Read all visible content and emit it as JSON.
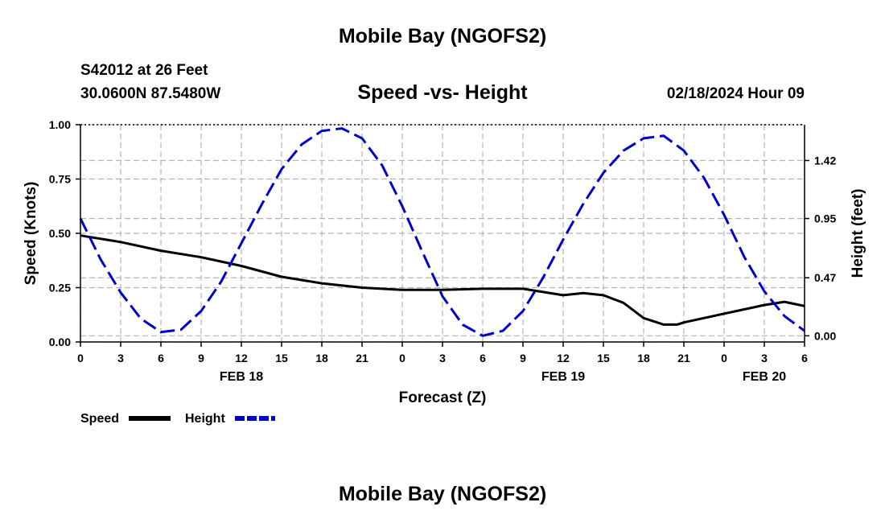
{
  "header": {
    "title": "Mobile Bay (NGOFS2)",
    "station": "S42012 at 26 Feet",
    "coords": "30.0600N  87.5480W",
    "subtitle": "Speed -vs- Height",
    "timestamp": "02/18/2024 Hour 09",
    "footer_title": "Mobile Bay (NGOFS2)"
  },
  "chart_data": {
    "type": "line",
    "title": "Speed -vs- Height",
    "xlabel": "Forecast (Z)",
    "ylabel": "Speed (Knots)",
    "y2label": "Height (feet)",
    "xlim": [
      0,
      54
    ],
    "ylim": [
      0,
      1.0
    ],
    "y2lim": [
      -0.05,
      1.71
    ],
    "x_ticks": [
      0,
      3,
      6,
      9,
      12,
      15,
      18,
      21,
      24,
      27,
      30,
      33,
      36,
      39,
      42,
      45,
      48,
      51,
      54
    ],
    "x_tick_labels": [
      "0",
      "3",
      "6",
      "9",
      "12",
      "15",
      "18",
      "21",
      "0",
      "3",
      "6",
      "9",
      "12",
      "15",
      "18",
      "21",
      "0",
      "3",
      "6"
    ],
    "date_labels": [
      {
        "x": 12,
        "label": "FEB 18"
      },
      {
        "x": 36,
        "label": "FEB 19"
      },
      {
        "x": 51,
        "label": "FEB 20"
      }
    ],
    "y_ticks": [
      0.0,
      0.25,
      0.5,
      0.75,
      1.0
    ],
    "y_tick_labels": [
      "0.00",
      "0.25",
      "0.50",
      "0.75",
      "1.00"
    ],
    "y2_ticks": [
      0.0,
      0.47,
      0.95,
      1.42
    ],
    "y2_tick_labels": [
      "0.00",
      "0.47",
      "0.95",
      "1.42"
    ],
    "grid": true,
    "legend": {
      "position": "bottom-left",
      "speed_label": "Speed",
      "height_label": "Height"
    },
    "series": [
      {
        "name": "Speed",
        "axis": "left",
        "color": "#000000",
        "style": "solid",
        "x": [
          0,
          3,
          6,
          9,
          12,
          15,
          18,
          21,
          24,
          27,
          30,
          33,
          36,
          37.5,
          39,
          40.5,
          42,
          43.5,
          44.5,
          45,
          46.5,
          48,
          49.5,
          51,
          52.5,
          54
        ],
        "y": [
          0.49,
          0.46,
          0.42,
          0.39,
          0.35,
          0.3,
          0.27,
          0.25,
          0.24,
          0.24,
          0.245,
          0.245,
          0.215,
          0.225,
          0.215,
          0.18,
          0.11,
          0.08,
          0.08,
          0.09,
          0.11,
          0.13,
          0.15,
          0.17,
          0.185,
          0.165
        ]
      },
      {
        "name": "Height",
        "axis": "right",
        "color": "#0000cc",
        "style": "dashed",
        "x": [
          0,
          1.5,
          3,
          4.5,
          6,
          7.5,
          9,
          10.5,
          12,
          13.5,
          15,
          16.5,
          18,
          19.5,
          21,
          22.5,
          24,
          25.5,
          27,
          28.5,
          30,
          31.5,
          33,
          34.5,
          36,
          37.5,
          39,
          40.5,
          42,
          43.5,
          45,
          46.5,
          48,
          49.5,
          51,
          52.5,
          54
        ],
        "y": [
          0.95,
          0.62,
          0.35,
          0.14,
          0.03,
          0.05,
          0.2,
          0.44,
          0.75,
          1.06,
          1.35,
          1.55,
          1.66,
          1.68,
          1.6,
          1.38,
          1.05,
          0.68,
          0.32,
          0.09,
          0.0,
          0.04,
          0.2,
          0.47,
          0.78,
          1.07,
          1.32,
          1.5,
          1.6,
          1.62,
          1.5,
          1.28,
          0.98,
          0.64,
          0.36,
          0.16,
          0.04
        ]
      }
    ]
  }
}
